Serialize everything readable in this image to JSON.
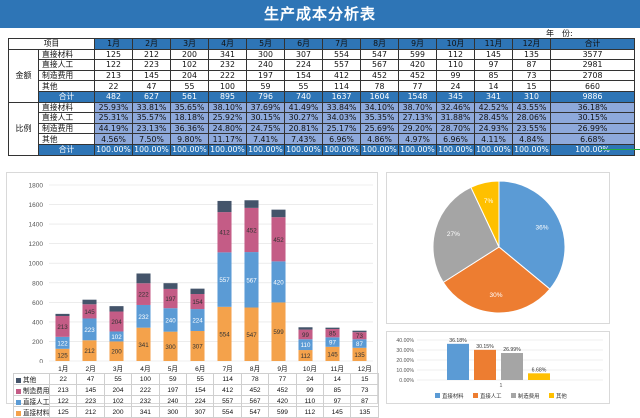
{
  "title": "生产成本分析表",
  "year_label": "年　份:",
  "year_value": "",
  "colors": {
    "direct_material": "#f4a24b",
    "direct_labor": "#5b9bd5",
    "mfg_overhead": "#c45c86",
    "other": "#44546a",
    "pie_other": "#ffc000",
    "pie_overhead": "#a5a5a5",
    "pie_labor": "#ed7d31",
    "pie_material": "#5b9bd5"
  },
  "table": {
    "header": [
      "项目",
      "",
      "1月",
      "2月",
      "3月",
      "4月",
      "5月",
      "6月",
      "7月",
      "8月",
      "9月",
      "10月",
      "11月",
      "12月",
      "合计"
    ],
    "amount_section": "金额",
    "ratio_section": "比例",
    "amount_rows": [
      {
        "item": "直接材料",
        "values": [
          "125",
          "212",
          "200",
          "341",
          "300",
          "307",
          "554",
          "547",
          "599",
          "112",
          "145",
          "135",
          "3577"
        ]
      },
      {
        "item": "直接人工",
        "values": [
          "122",
          "223",
          "102",
          "232",
          "240",
          "224",
          "557",
          "567",
          "420",
          "110",
          "97",
          "87",
          "2981"
        ]
      },
      {
        "item": "制造费用",
        "values": [
          "213",
          "145",
          "204",
          "222",
          "197",
          "154",
          "412",
          "452",
          "452",
          "99",
          "85",
          "73",
          "2708"
        ]
      },
      {
        "item": "其他",
        "values": [
          "22",
          "47",
          "55",
          "100",
          "59",
          "55",
          "114",
          "78",
          "77",
          "24",
          "14",
          "15",
          "660"
        ]
      }
    ],
    "amount_total": {
      "item": "合计",
      "values": [
        "482",
        "627",
        "561",
        "895",
        "796",
        "740",
        "1637",
        "1604",
        "1548",
        "345",
        "341",
        "310",
        "9886"
      ]
    },
    "ratio_rows": [
      {
        "item": "直接材料",
        "values": [
          "25.93%",
          "33.81%",
          "35.65%",
          "38.10%",
          "37.69%",
          "41.49%",
          "33.84%",
          "34.10%",
          "38.70%",
          "32.46%",
          "42.52%",
          "43.55%",
          "36.18%"
        ]
      },
      {
        "item": "直接人工",
        "values": [
          "25.31%",
          "35.57%",
          "18.18%",
          "25.92%",
          "30.15%",
          "30.27%",
          "34.03%",
          "35.35%",
          "27.13%",
          "31.88%",
          "28.45%",
          "28.06%",
          "30.15%"
        ]
      },
      {
        "item": "制造费用",
        "values": [
          "44.19%",
          "23.13%",
          "36.36%",
          "24.80%",
          "24.75%",
          "20.81%",
          "25.17%",
          "25.69%",
          "29.20%",
          "28.70%",
          "24.93%",
          "23.55%",
          "26.99%"
        ]
      },
      {
        "item": "其他",
        "values": [
          "4.56%",
          "7.50%",
          "9.80%",
          "11.17%",
          "7.41%",
          "7.43%",
          "6.96%",
          "4.86%",
          "4.97%",
          "6.96%",
          "4.11%",
          "4.84%",
          "6.68%"
        ]
      }
    ],
    "ratio_total": {
      "item": "合计",
      "values": [
        "100.00%",
        "100.00%",
        "100.00%",
        "100.00%",
        "100.00%",
        "100.00%",
        "100.00%",
        "100.00%",
        "100.00%",
        "100.00%",
        "100.00%",
        "100.00%",
        "100.00%"
      ]
    }
  },
  "chart_data": [
    {
      "type": "bar",
      "stacked": true,
      "categories": [
        "1月",
        "2月",
        "3月",
        "4月",
        "5月",
        "6月",
        "7月",
        "8月",
        "9月",
        "10月",
        "11月",
        "12月"
      ],
      "series": [
        {
          "name": "直接材料",
          "values": [
            125,
            212,
            200,
            341,
            300,
            307,
            554,
            547,
            599,
            112,
            145,
            135
          ]
        },
        {
          "name": "直接人工",
          "values": [
            122,
            223,
            102,
            232,
            240,
            224,
            557,
            567,
            420,
            110,
            97,
            87
          ]
        },
        {
          "name": "制造费用",
          "values": [
            213,
            145,
            204,
            222,
            197,
            154,
            412,
            452,
            452,
            99,
            85,
            73
          ]
        },
        {
          "name": "其他",
          "values": [
            22,
            47,
            55,
            100,
            59,
            55,
            114,
            78,
            77,
            24,
            14,
            15
          ]
        }
      ],
      "yticks": [
        "0",
        "200",
        "400",
        "600",
        "800",
        "1000",
        "1200",
        "1400",
        "1600",
        "1800"
      ],
      "ylim": [
        0,
        1800
      ],
      "grid": true,
      "legend": "data-table-below"
    },
    {
      "type": "pie",
      "labels": [
        "直接材料",
        "直接人工",
        "制造费用",
        "其他"
      ],
      "values": [
        36,
        30,
        27,
        7
      ],
      "data_labels": [
        "36%",
        "30%",
        "27%",
        "7%"
      ]
    },
    {
      "type": "bar",
      "categories": [
        "1"
      ],
      "series": [
        {
          "name": "直接材料",
          "values": [
            36.18
          ]
        },
        {
          "name": "直接人工",
          "values": [
            30.15
          ]
        },
        {
          "name": "制造费用",
          "values": [
            26.99
          ]
        },
        {
          "name": "其他",
          "values": [
            6.68
          ]
        }
      ],
      "data_labels": [
        "36.18%",
        "30.15%",
        "26.99%",
        "6.68%"
      ],
      "yticks": [
        "0.00%",
        "10.00%",
        "20.00%",
        "30.00%",
        "40.00%"
      ],
      "ylim": [
        0,
        40
      ],
      "grid": true,
      "legend": "bottom"
    }
  ]
}
